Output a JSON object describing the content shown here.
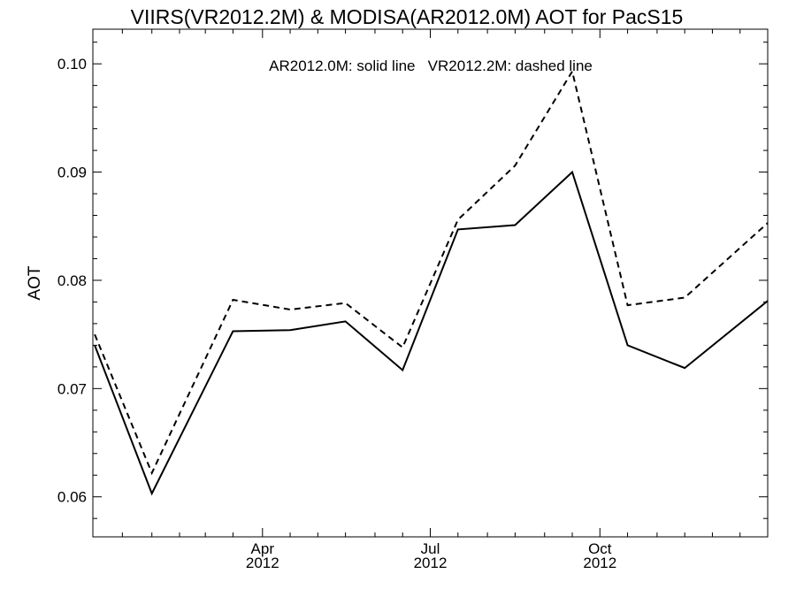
{
  "chart_data": {
    "type": "line",
    "title": "VIIRS(VR2012.2M) & MODISA(AR2012.0M)  AOT for PacS15",
    "ylabel": "AOT",
    "xlabel": "",
    "annotation": "AR2012.0M: solid line   VR2012.2M: dashed line",
    "x_domain": [
      "2011-12-31",
      "2012-12-31"
    ],
    "ylim": [
      0.0563,
      0.1032
    ],
    "y_ticks": [
      0.06,
      0.07,
      0.08,
      0.09,
      0.1
    ],
    "y_tick_labels": [
      "0.06",
      "0.07",
      "0.08",
      "0.09",
      "0.10"
    ],
    "x_ticks": [
      {
        "date": "2012-04-01",
        "label_top": "Apr",
        "label_bottom": "2012"
      },
      {
        "date": "2012-07-01",
        "label_top": "Jul",
        "label_bottom": "2012"
      },
      {
        "date": "2012-10-01",
        "label_top": "Oct",
        "label_bottom": "2012"
      }
    ],
    "x_minor_ticks": [
      "2012-01-16",
      "2012-02-01",
      "2012-02-16",
      "2012-03-01",
      "2012-03-16",
      "2012-04-16",
      "2012-05-01",
      "2012-05-16",
      "2012-06-01",
      "2012-06-16",
      "2012-07-16",
      "2012-08-01",
      "2012-08-16",
      "2012-09-01",
      "2012-09-16",
      "2012-10-16",
      "2012-11-01",
      "2012-11-16",
      "2012-12-01",
      "2012-12-16"
    ],
    "grid": false,
    "legend": "none",
    "series": [
      {
        "name": "AR2012.0M",
        "line_style": "solid",
        "color": "#000000",
        "x": [
          "2012-01-01",
          "2012-02-01",
          "2012-03-16",
          "2012-04-16",
          "2012-05-16",
          "2012-06-16",
          "2012-07-16",
          "2012-08-16",
          "2012-09-16",
          "2012-10-16",
          "2012-11-16",
          "2012-12-31"
        ],
        "values": [
          0.074,
          0.0603,
          0.0753,
          0.0754,
          0.0762,
          0.0717,
          0.0847,
          0.0851,
          0.09,
          0.074,
          0.0719,
          0.0781
        ]
      },
      {
        "name": "VR2012.2M",
        "line_style": "dashed",
        "color": "#000000",
        "x": [
          "2012-01-01",
          "2012-02-01",
          "2012-03-16",
          "2012-04-16",
          "2012-05-16",
          "2012-06-16",
          "2012-07-16",
          "2012-08-16",
          "2012-09-16",
          "2012-10-16",
          "2012-11-16",
          "2012-12-31"
        ],
        "values": [
          0.075,
          0.0622,
          0.0782,
          0.0773,
          0.0779,
          0.0738,
          0.0856,
          0.0906,
          0.0993,
          0.0777,
          0.0784,
          0.0853
        ]
      }
    ]
  }
}
